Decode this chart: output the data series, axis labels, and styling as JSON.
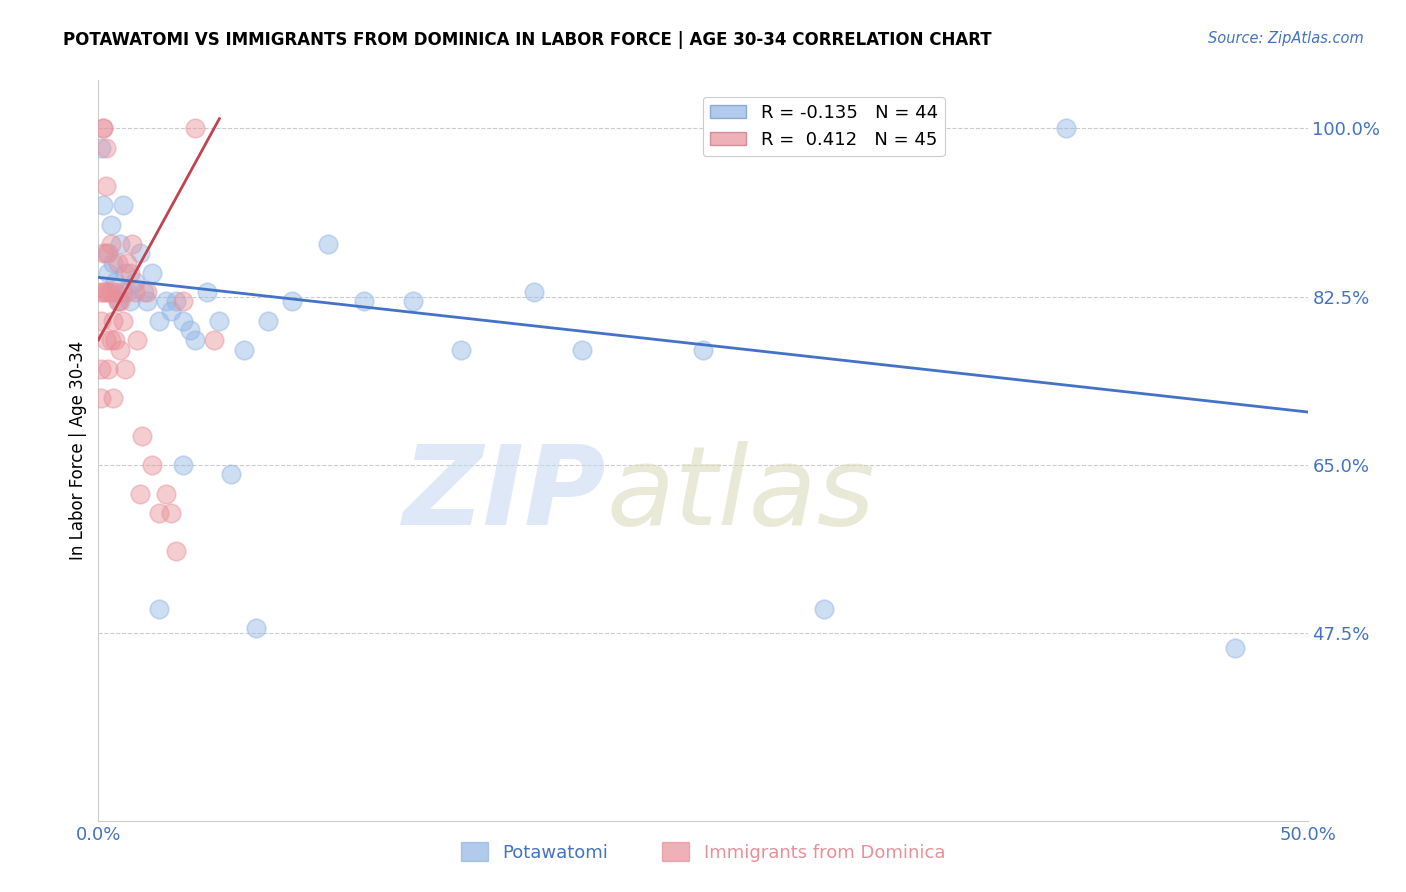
{
  "title": "POTAWATOMI VS IMMIGRANTS FROM DOMINICA IN LABOR FORCE | AGE 30-34 CORRELATION CHART",
  "source": "Source: ZipAtlas.com",
  "ylabel": "In Labor Force | Age 30-34",
  "xlabel_potawatomi": "Potawatomi",
  "xlabel_dominica": "Immigrants from Dominica",
  "xmin": 0.0,
  "xmax": 0.5,
  "ymin": 0.28,
  "ymax": 1.05,
  "yticks": [
    0.475,
    0.65,
    0.825,
    1.0
  ],
  "ytick_labels": [
    "47.5%",
    "65.0%",
    "82.5%",
    "100.0%"
  ],
  "legend_blue_r": "R = -0.135",
  "legend_blue_n": "N = 44",
  "legend_pink_r": "R =  0.412",
  "legend_pink_n": "N = 45",
  "blue_color": "#92b4e3",
  "pink_color": "#e8909a",
  "trendline_blue_color": "#4472c4",
  "trendline_pink_color": "#c0434f",
  "blue_trend_x0": 0.0,
  "blue_trend_y0": 0.845,
  "blue_trend_x1": 0.5,
  "blue_trend_y1": 0.705,
  "pink_trend_x0": 0.0,
  "pink_trend_y0": 0.78,
  "pink_trend_x1": 0.05,
  "pink_trend_y1": 1.01,
  "blue_dots_x": [
    0.001,
    0.002,
    0.003,
    0.004,
    0.005,
    0.006,
    0.007,
    0.008,
    0.009,
    0.01,
    0.011,
    0.012,
    0.013,
    0.015,
    0.017,
    0.019,
    0.02,
    0.022,
    0.025,
    0.028,
    0.03,
    0.032,
    0.035,
    0.038,
    0.04,
    0.045,
    0.05,
    0.06,
    0.07,
    0.08,
    0.095,
    0.11,
    0.13,
    0.15,
    0.18,
    0.2,
    0.25,
    0.3,
    0.4,
    0.47,
    0.025,
    0.035,
    0.055,
    0.065
  ],
  "blue_dots_y": [
    0.98,
    0.92,
    0.87,
    0.85,
    0.9,
    0.86,
    0.84,
    0.82,
    0.88,
    0.92,
    0.85,
    0.83,
    0.82,
    0.84,
    0.87,
    0.83,
    0.82,
    0.85,
    0.8,
    0.82,
    0.81,
    0.82,
    0.8,
    0.79,
    0.78,
    0.83,
    0.8,
    0.77,
    0.8,
    0.82,
    0.88,
    0.82,
    0.82,
    0.77,
    0.83,
    0.77,
    0.77,
    0.5,
    1.0,
    0.46,
    0.5,
    0.65,
    0.64,
    0.48
  ],
  "pink_dots_x": [
    0.001,
    0.001,
    0.001,
    0.001,
    0.002,
    0.002,
    0.002,
    0.002,
    0.003,
    0.003,
    0.003,
    0.003,
    0.004,
    0.004,
    0.004,
    0.005,
    0.005,
    0.005,
    0.006,
    0.006,
    0.007,
    0.007,
    0.008,
    0.008,
    0.009,
    0.009,
    0.01,
    0.01,
    0.011,
    0.012,
    0.013,
    0.014,
    0.015,
    0.016,
    0.017,
    0.018,
    0.02,
    0.022,
    0.025,
    0.028,
    0.03,
    0.032,
    0.035,
    0.04,
    0.048
  ],
  "pink_dots_y": [
    0.83,
    0.8,
    0.75,
    0.72,
    1.0,
    1.0,
    0.87,
    0.83,
    0.98,
    0.94,
    0.83,
    0.78,
    0.87,
    0.83,
    0.75,
    0.88,
    0.83,
    0.78,
    0.8,
    0.72,
    0.83,
    0.78,
    0.86,
    0.82,
    0.82,
    0.77,
    0.83,
    0.8,
    0.75,
    0.86,
    0.85,
    0.88,
    0.83,
    0.78,
    0.62,
    0.68,
    0.83,
    0.65,
    0.6,
    0.62,
    0.6,
    0.56,
    0.82,
    1.0,
    0.78
  ]
}
